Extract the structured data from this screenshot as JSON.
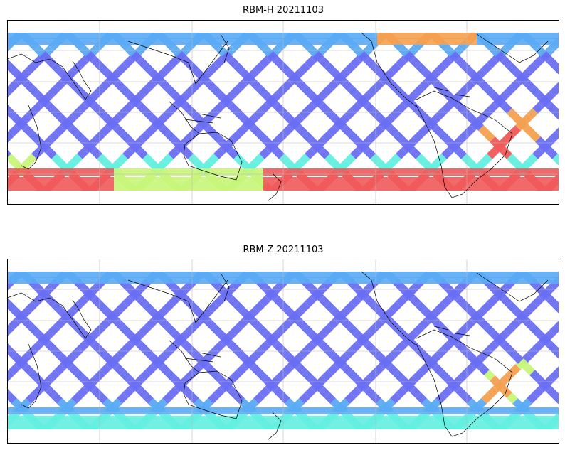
{
  "panels": [
    {
      "title": "RBM-H 20211103"
    },
    {
      "title": "RBM-Z 20211103"
    }
  ],
  "colors": {
    "low": "#6a6ef2",
    "low_mid": "#5aaaf5",
    "mid": "#63f0e0",
    "mid_high": "#c8f57a",
    "high": "#f5a050",
    "very_high": "#f05a5a",
    "coastline": "#000000",
    "gridline": "#bbbbbb"
  }
}
